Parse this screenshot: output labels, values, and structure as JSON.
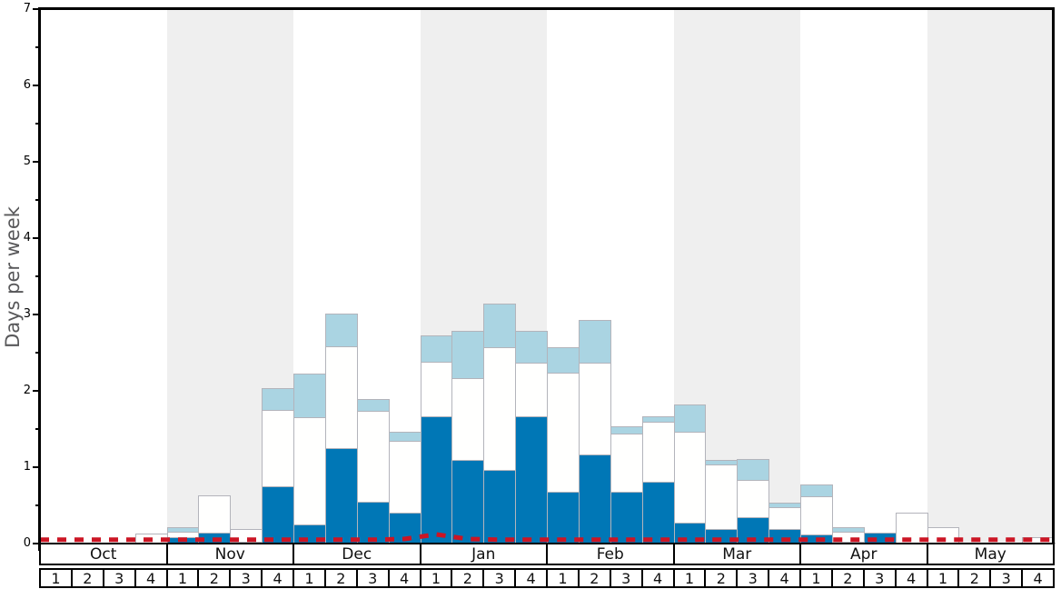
{
  "chart_data": {
    "type": "bar",
    "stacked": true,
    "ylabel": "Days per week",
    "ylim": [
      0,
      7
    ],
    "yticks": [
      0,
      1,
      2,
      3,
      4,
      5,
      6,
      7
    ],
    "minor_tick_step": 0.5,
    "grid": false,
    "legend": "none",
    "months": [
      "Oct",
      "Nov",
      "Dec",
      "Jan",
      "Feb",
      "Mar",
      "Apr",
      "May"
    ],
    "week_labels": [
      "1",
      "2",
      "3",
      "4"
    ],
    "weeks_per_month": 4,
    "band_colors": [
      "#ffffff",
      "#efefef"
    ],
    "bar_border_color": "#b3b4bb",
    "series": [
      {
        "name": "dark-blue-days",
        "color": "#0077b6",
        "values": [
          0,
          0,
          0,
          0,
          0.08,
          0.14,
          0.02,
          0.75,
          0.25,
          1.25,
          0.55,
          0.41,
          1.67,
          1.1,
          0.96,
          1.67,
          0.68,
          1.17,
          0.68,
          0.81,
          0.27,
          0.19,
          0.34,
          0.19,
          0.12,
          0.02,
          0.14,
          0,
          0,
          0,
          0,
          0
        ]
      },
      {
        "name": "white-days",
        "color": "#fffffe",
        "values": [
          0,
          0,
          0,
          0.13,
          0.08,
          0.49,
          0.17,
          1.0,
          1.41,
          1.33,
          1.19,
          0.94,
          0.71,
          1.07,
          1.61,
          0.7,
          1.56,
          1.2,
          0.76,
          0.78,
          1.19,
          0.85,
          0.49,
          0.29,
          0.5,
          0.13,
          0,
          0.4,
          0.21,
          0,
          0,
          0.08
        ]
      },
      {
        "name": "light-blue-days",
        "color": "#aad4e2",
        "values": [
          0,
          0,
          0,
          0,
          0.06,
          0,
          0,
          0.28,
          0.57,
          0.43,
          0.15,
          0.11,
          0.35,
          0.62,
          0.57,
          0.42,
          0.33,
          0.56,
          0.09,
          0.08,
          0.36,
          0.06,
          0.28,
          0.06,
          0.15,
          0.06,
          0,
          0,
          0,
          0,
          0,
          0
        ]
      }
    ],
    "red_dashed_line": {
      "name": "threshold-line",
      "color": "#cc1524",
      "values": [
        0.05,
        0.05,
        0.05,
        0.05,
        0.05,
        0.05,
        0.05,
        0.05,
        0.05,
        0.05,
        0.05,
        0.06,
        0.12,
        0.06,
        0.05,
        0.05,
        0.05,
        0.05,
        0.05,
        0.05,
        0.05,
        0.05,
        0.05,
        0.05,
        0.05,
        0.05,
        0.05,
        0.05,
        0.05,
        0.05,
        0.05,
        0.05
      ]
    }
  }
}
